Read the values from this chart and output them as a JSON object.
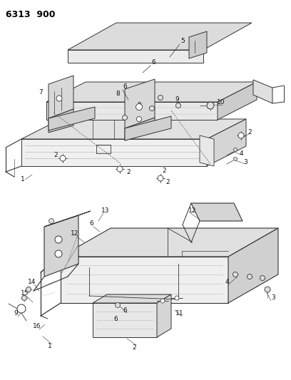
{
  "title": "6313 900",
  "bg_color": "#ffffff",
  "line_color": "#333333",
  "label_color": "#111111",
  "label_fontsize": 6.5,
  "fig_width": 4.08,
  "fig_height": 5.33,
  "dpi": 100
}
